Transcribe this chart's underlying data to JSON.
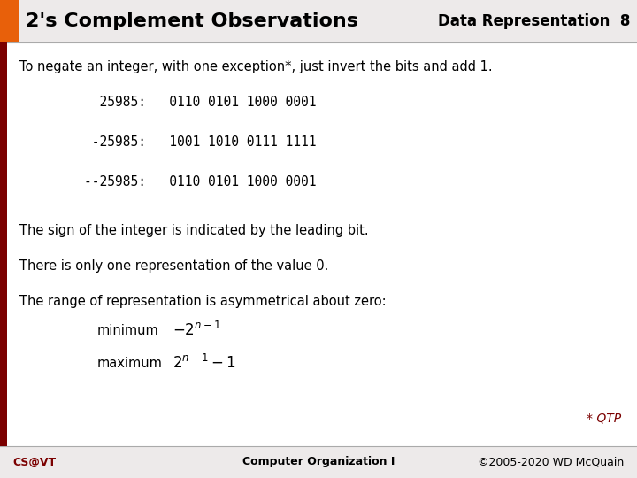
{
  "title": "2's Complement Observations",
  "header_right": "Data Representation  8",
  "orange_color": "#E8600A",
  "dark_red_color": "#7B0000",
  "bg_color": "#EDEAEA",
  "white_color": "#FFFFFF",
  "footer_left": "CS@VT",
  "footer_center": "Computer Organization I",
  "footer_right": "©2005-2020 WD McQuain",
  "qtp_text": "* QTP",
  "body_text_color": "#000000",
  "mono_color": "#000000",
  "line1": "To negate an integer, with one exception*, just invert the bits and add 1.",
  "code_line1": "  25985:   0110 0101 1000 0001",
  "code_line2": " -25985:   1001 1010 0111 1111",
  "code_line3": "--25985:   0110 0101 1000 0001",
  "text_sign": "The sign of the integer is indicated by the leading bit.",
  "text_one": "There is only one representation of the value 0.",
  "text_range": "The range of representation is asymmetrical about zero:",
  "text_minimum": "minimum",
  "text_maximum": "maximum"
}
